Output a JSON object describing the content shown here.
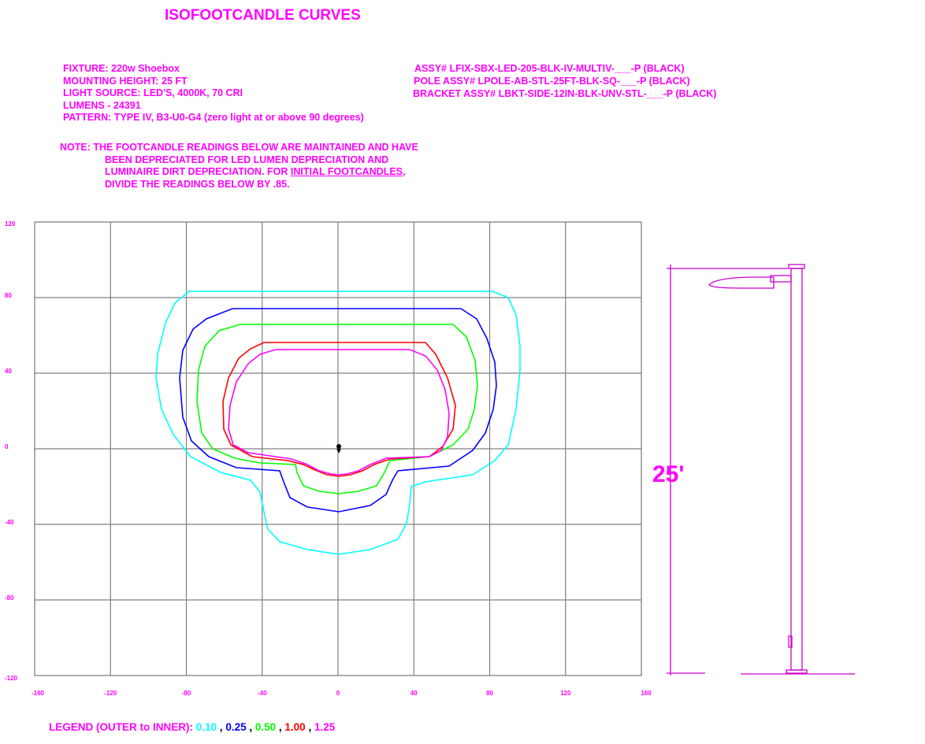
{
  "title": "ISOFOOTCANDLE CURVES",
  "specs": {
    "fixture": "FIXTURE: 220w Shoebox",
    "mounting_height": "MOUNTING HEIGHT: 25 FT",
    "light_source": "LIGHT SOURCE: LED'S, 4000K, 70 CRI",
    "lumens": "LUMENS - 24391",
    "pattern": "PATTERN: TYPE IV, B3-U0-G4 (zero light at or above 90 degrees)",
    "assy": "ASSY# LFIX-SBX-LED-205-BLK-IV-MULTIV-___-P (BLACK)",
    "pole_assy": "POLE ASSY# LPOLE-AB-STL-25FT-BLK-SQ-___-P (BLACK)",
    "bracket_assy": "BRACKET ASSY# LBKT-SIDE-12IN-BLK-UNV-STL-___-P (BLACK)"
  },
  "note": {
    "line1": "NOTE: THE FOOTCANDLE READINGS BELOW ARE MAINTAINED AND HAVE",
    "line2": "BEEN DEPRECIATED FOR LED LUMEN DEPRECIATION AND",
    "line3_pre": "LUMINAIRE DIRT DEPRECIATION. FOR ",
    "line3_underlined": "INITIAL FOOTCANDLES,",
    "line4": "DIVIDE THE READINGS BELOW BY .85."
  },
  "grid": {
    "x_ticks": [
      "-160",
      "-120",
      "-80",
      "-40",
      "0",
      "40",
      "80",
      "120",
      "160"
    ],
    "y_ticks": [
      "120",
      "80",
      "40",
      "0",
      "-40",
      "-80",
      "-120"
    ],
    "x_range": [
      -160,
      160
    ],
    "y_range": [
      -120,
      120
    ],
    "grid_color": "#808080"
  },
  "curves": [
    {
      "value": "0.10",
      "color": "#00ffff"
    },
    {
      "value": "0.25",
      "color": "#0000ff"
    },
    {
      "value": "0.50",
      "color": "#00ff00"
    },
    {
      "value": "1.00",
      "color": "#ff0000"
    },
    {
      "value": "1.25",
      "color": "#ff00ff"
    }
  ],
  "pole_height_label": "25'",
  "legend": {
    "prefix": "LEGEND (OUTER to INNER):",
    "separator": ","
  },
  "colors": {
    "accent": "#ff00ff",
    "pole": "#cc00cc"
  }
}
